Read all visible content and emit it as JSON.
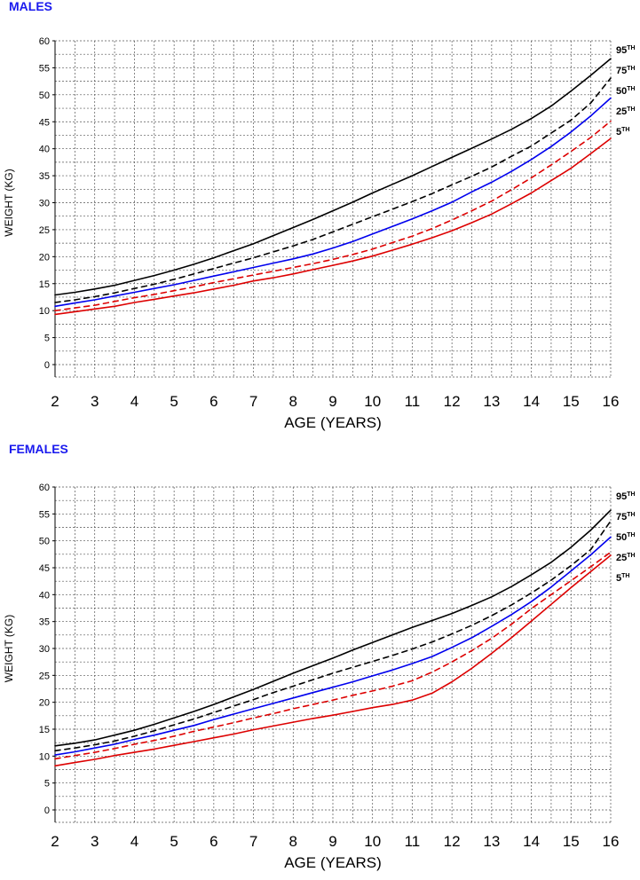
{
  "chart_data": [
    {
      "type": "line",
      "title": "MALES",
      "xlabel": "AGE (YEARS)",
      "ylabel": "WEIGHT (KG)",
      "xlim": [
        2,
        16
      ],
      "ylim": [
        0,
        60
      ],
      "x_ticks": [
        2,
        3,
        4,
        5,
        6,
        7,
        8,
        9,
        10,
        11,
        12,
        13,
        14,
        15,
        16
      ],
      "y_ticks": [
        0,
        5,
        10,
        15,
        20,
        25,
        30,
        35,
        40,
        45,
        50,
        55,
        60
      ],
      "grid": true,
      "x": [
        2,
        2.5,
        3,
        3.5,
        4,
        4.5,
        5,
        5.5,
        6,
        6.5,
        7,
        7.5,
        8,
        8.5,
        9,
        9.5,
        10,
        10.5,
        11,
        11.5,
        12,
        12.5,
        13,
        13.5,
        14,
        14.5,
        15,
        15.5,
        16
      ],
      "series": [
        {
          "name": "95",
          "label_base": "95",
          "label_sup": "TH",
          "color": "#000000",
          "dashed": false,
          "values": [
            12.9,
            13.4,
            14.0,
            14.7,
            15.6,
            16.5,
            17.5,
            18.6,
            19.8,
            21.1,
            22.4,
            23.9,
            25.4,
            26.9,
            28.5,
            30.1,
            31.8,
            33.4,
            35.0,
            36.7,
            38.4,
            40.1,
            41.8,
            43.6,
            45.6,
            47.9,
            50.7,
            53.6,
            56.7
          ]
        },
        {
          "name": "75",
          "label_base": "75",
          "label_sup": "TH",
          "color": "#000000",
          "dashed": true,
          "values": [
            11.5,
            12.0,
            12.6,
            13.3,
            14.1,
            14.9,
            15.8,
            16.8,
            17.8,
            18.8,
            19.8,
            20.9,
            22.0,
            23.2,
            24.6,
            26.0,
            27.4,
            28.8,
            30.2,
            31.7,
            33.3,
            34.9,
            36.6,
            38.6,
            40.5,
            42.9,
            45.3,
            48.5,
            53.1
          ]
        },
        {
          "name": "50",
          "label_base": "50",
          "label_sup": "TH",
          "color": "#0000ee",
          "dashed": false,
          "values": [
            10.8,
            11.4,
            12.0,
            12.7,
            13.4,
            14.1,
            14.8,
            15.6,
            16.4,
            17.2,
            18.0,
            18.8,
            19.6,
            20.5,
            21.6,
            22.8,
            24.2,
            25.6,
            27.0,
            28.5,
            30.1,
            32.0,
            33.8,
            35.8,
            38.0,
            40.4,
            43.1,
            46.1,
            49.4
          ]
        },
        {
          "name": "25",
          "label_base": "25",
          "label_sup": "TH",
          "color": "#dd0000",
          "dashed": true,
          "values": [
            10.0,
            10.5,
            11.0,
            11.7,
            12.4,
            13.0,
            13.7,
            14.4,
            15.2,
            15.9,
            16.6,
            17.3,
            18.0,
            18.7,
            19.5,
            20.4,
            21.4,
            22.6,
            23.8,
            25.2,
            26.8,
            28.5,
            30.3,
            32.4,
            34.6,
            37.0,
            39.5,
            42.1,
            45.1
          ]
        },
        {
          "name": "5",
          "label_base": "5",
          "label_sup": "TH",
          "color": "#dd0000",
          "dashed": false,
          "values": [
            9.3,
            9.8,
            10.3,
            10.8,
            11.5,
            12.1,
            12.7,
            13.3,
            14.0,
            14.7,
            15.5,
            16.1,
            16.8,
            17.6,
            18.4,
            19.2,
            20.1,
            21.2,
            22.3,
            23.5,
            24.8,
            26.3,
            27.9,
            29.8,
            31.8,
            34.1,
            36.4,
            39.1,
            41.9
          ]
        }
      ]
    },
    {
      "type": "line",
      "title": "FEMALES",
      "xlabel": "AGE (YEARS)",
      "ylabel": "WEIGHT (KG)",
      "xlim": [
        2,
        16
      ],
      "ylim": [
        0,
        60
      ],
      "x_ticks": [
        2,
        3,
        4,
        5,
        6,
        7,
        8,
        9,
        10,
        11,
        12,
        13,
        14,
        15,
        16
      ],
      "y_ticks": [
        0,
        5,
        10,
        15,
        20,
        25,
        30,
        35,
        40,
        45,
        50,
        55,
        60
      ],
      "grid": true,
      "x": [
        2,
        2.5,
        3,
        3.5,
        4,
        4.5,
        5,
        5.5,
        6,
        6.5,
        7,
        7.5,
        8,
        8.5,
        9,
        9.5,
        10,
        10.5,
        11,
        11.5,
        12,
        12.5,
        13,
        13.5,
        14,
        14.5,
        15,
        15.5,
        16
      ],
      "series": [
        {
          "name": "95",
          "label_base": "95",
          "label_sup": "TH",
          "color": "#000000",
          "dashed": false,
          "values": [
            11.9,
            12.4,
            13.0,
            13.9,
            14.8,
            15.9,
            17.1,
            18.3,
            19.6,
            21.0,
            22.4,
            23.9,
            25.4,
            26.8,
            28.2,
            29.7,
            31.1,
            32.5,
            33.9,
            35.2,
            36.5,
            38.0,
            39.6,
            41.5,
            43.7,
            46.0,
            48.8,
            52.0,
            55.7
          ]
        },
        {
          "name": "75",
          "label_base": "75",
          "label_sup": "TH",
          "color": "#000000",
          "dashed": true,
          "values": [
            11.0,
            11.5,
            12.1,
            12.8,
            13.7,
            14.7,
            15.8,
            16.9,
            18.1,
            19.3,
            20.5,
            21.8,
            23.0,
            24.2,
            25.4,
            26.5,
            27.6,
            28.7,
            29.9,
            31.2,
            32.7,
            34.3,
            36.1,
            38.1,
            40.3,
            42.7,
            45.4,
            48.4,
            53.7
          ]
        },
        {
          "name": "50",
          "label_base": "50",
          "label_sup": "TH",
          "color": "#0000ee",
          "dashed": false,
          "values": [
            10.2,
            10.8,
            11.5,
            12.2,
            13.1,
            13.9,
            14.8,
            15.7,
            16.8,
            17.8,
            18.8,
            19.8,
            20.8,
            21.8,
            22.8,
            23.8,
            24.9,
            26.0,
            27.2,
            28.5,
            30.2,
            32.0,
            34.1,
            36.3,
            38.7,
            41.4,
            44.4,
            47.4,
            50.7
          ]
        },
        {
          "name": "25",
          "label_base": "25",
          "label_sup": "TH",
          "color": "#dd0000",
          "dashed": true,
          "values": [
            9.5,
            10.1,
            10.7,
            11.4,
            12.2,
            12.9,
            13.7,
            14.6,
            15.4,
            16.2,
            17.1,
            17.9,
            18.8,
            19.6,
            20.4,
            21.3,
            22.1,
            23.0,
            24.0,
            25.6,
            27.5,
            29.6,
            31.9,
            34.5,
            37.4,
            40.0,
            42.6,
            45.2,
            47.9
          ]
        },
        {
          "name": "5",
          "label_base": "5",
          "label_sup": "TH",
          "color": "#dd0000",
          "dashed": false,
          "values": [
            8.2,
            8.8,
            9.4,
            10.1,
            10.7,
            11.3,
            12.0,
            12.7,
            13.4,
            14.1,
            14.9,
            15.6,
            16.3,
            17.0,
            17.6,
            18.3,
            19.0,
            19.6,
            20.4,
            21.7,
            23.8,
            26.3,
            29.1,
            32.0,
            35.1,
            38.2,
            41.3,
            44.3,
            47.3
          ]
        }
      ]
    }
  ]
}
